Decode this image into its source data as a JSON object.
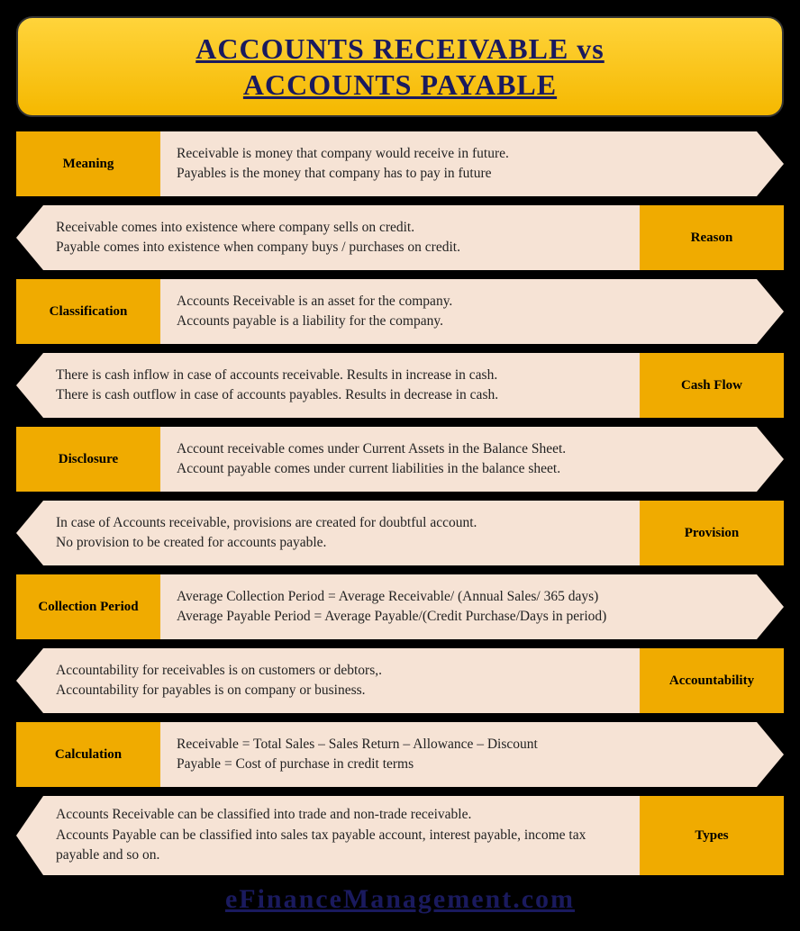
{
  "title_line1": "ACCOUNTS RECEIVABLE vs",
  "title_line2": "ACCOUNTS PAYABLE",
  "rows": [
    {
      "side": "left",
      "label": "Meaning",
      "line1": "Receivable is money that company would receive in future.",
      "line2": "Payables is the money that company has to pay in future"
    },
    {
      "side": "right",
      "label": "Reason",
      "line1": "Receivable comes into existence where company sells on credit.",
      "line2": "Payable comes into existence when company buys / purchases on credit."
    },
    {
      "side": "left",
      "label": "Classification",
      "line1": "Accounts Receivable is an asset for the company.",
      "line2": "Accounts payable is a liability for the company."
    },
    {
      "side": "right",
      "label": "Cash Flow",
      "line1": "There is cash inflow in case of accounts receivable. Results in increase in cash.",
      "line2": "There is cash outflow in case of accounts payables. Results in decrease in cash."
    },
    {
      "side": "left",
      "label": "Disclosure",
      "line1": "Account receivable comes under Current Assets in the Balance Sheet.",
      "line2": "Account payable comes under current liabilities in the balance sheet."
    },
    {
      "side": "right",
      "label": "Provision",
      "line1": "In case of Accounts receivable, provisions are created for doubtful account.",
      "line2": "No provision to be created for accounts payable."
    },
    {
      "side": "left",
      "label": "Collection Period",
      "line1": "Average Collection Period = Average Receivable/ (Annual Sales/ 365 days)",
      "line2": "Average Payable Period = Average Payable/(Credit Purchase/Days in period)"
    },
    {
      "side": "right",
      "label": "Accountability",
      "line1": "Accountability for receivables is on customers or debtors,.",
      "line2": "Accountability for payables is on company or business."
    },
    {
      "side": "left",
      "label": "Calculation",
      "line1": "Receivable = Total Sales – Sales Return – Allowance – Discount",
      "line2": "Payable = Cost of purchase in credit terms"
    },
    {
      "side": "right",
      "tall": true,
      "label": "Types",
      "line1": "Accounts Receivable can be classified into trade and non-trade receivable.",
      "line2": "Accounts Payable can be classified into sales tax payable account, interest payable, income tax payable and so on."
    }
  ],
  "footer": "eFinanceManagement.com",
  "colors": {
    "background": "#000000",
    "label_bg": "#f0ab00",
    "desc_bg": "#f6e3d5",
    "title_text": "#1a1a5e",
    "body_text": "#222222"
  }
}
